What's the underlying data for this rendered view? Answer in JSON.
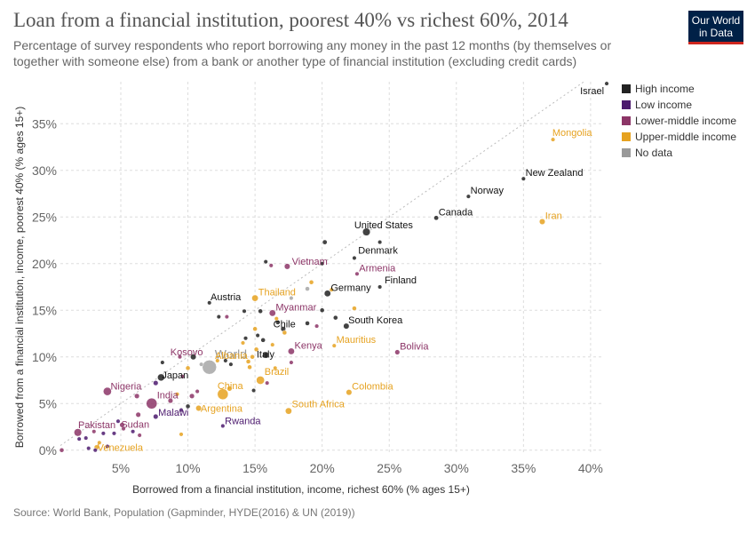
{
  "header": {
    "title": "Loan from a financial institution, poorest 40% vs richest 60%, 2014",
    "subtitle": "Percentage of survey respondents who report borrowing any money in the past 12 months (by themselves or together with someone else) from a bank or another type of financial institution (excluding credit cards)",
    "logo_line1": "Our World",
    "logo_line2": "in Data"
  },
  "footer": {
    "source": "Source: World Bank, Population (Gapminder, HYDE(2016) & UN (2019))"
  },
  "legend": [
    {
      "key": "high",
      "label": "High income",
      "color": "#222222"
    },
    {
      "key": "low",
      "label": "Low income",
      "color": "#4c1a6e"
    },
    {
      "key": "lower_middle",
      "label": "Lower-middle income",
      "color": "#8c3567"
    },
    {
      "key": "upper_middle",
      "label": "Upper-middle income",
      "color": "#e6a220"
    },
    {
      "key": "none",
      "label": "No data",
      "color": "#999999"
    }
  ],
  "chart_data": {
    "type": "scatter",
    "xlabel": "Borrowed from a financial institution, income, richest 60% (% ages 15+)",
    "ylabel": "Borrowed from a financial institution, income, poorest 40% (% ages 15+)",
    "xlim": [
      0.5,
      41
    ],
    "ylim": [
      -0.5,
      39.5
    ],
    "xticks": [
      5,
      10,
      15,
      20,
      25,
      30,
      35,
      40
    ],
    "xtick_labels": [
      "5%",
      "10%",
      "15%",
      "20%",
      "25%",
      "30%",
      "35%",
      "40%"
    ],
    "yticks": [
      0,
      5,
      10,
      15,
      20,
      25,
      30,
      35
    ],
    "ytick_labels": [
      "0%",
      "5%",
      "10%",
      "15%",
      "20%",
      "25%",
      "30%",
      "35%"
    ],
    "grid": true,
    "diagonal_line": true,
    "legend_position": "top-right",
    "points": [
      {
        "label": "Israel",
        "x": 41.2,
        "y": 39.3,
        "group": "high",
        "size": 1
      },
      {
        "label": "Mongolia",
        "x": 37.2,
        "y": 33.3,
        "group": "upper_middle",
        "size": 1
      },
      {
        "label": "New Zealand",
        "x": 35.0,
        "y": 29.1,
        "group": "high",
        "size": 1
      },
      {
        "label": "Norway",
        "x": 30.9,
        "y": 27.2,
        "group": "high",
        "size": 1
      },
      {
        "label": "Canada",
        "x": 28.5,
        "y": 24.9,
        "group": "high",
        "size": 1.3
      },
      {
        "label": "Iran",
        "x": 36.4,
        "y": 24.5,
        "group": "upper_middle",
        "size": 2
      },
      {
        "label": "United States",
        "x": 23.3,
        "y": 23.4,
        "group": "high",
        "size": 3.5
      },
      {
        "label": "Denmark",
        "x": 22.4,
        "y": 20.6,
        "group": "high",
        "size": 1
      },
      {
        "label": "Vietnam",
        "x": 17.4,
        "y": 19.7,
        "group": "lower_middle",
        "size": 2
      },
      {
        "label": "Armenia",
        "x": 22.6,
        "y": 18.9,
        "group": "lower_middle",
        "size": 1
      },
      {
        "label": "Finland",
        "x": 24.3,
        "y": 17.5,
        "group": "high",
        "size": 1
      },
      {
        "label": "Germany",
        "x": 20.4,
        "y": 16.8,
        "group": "high",
        "size": 2.5
      },
      {
        "label": "Thailand",
        "x": 15.0,
        "y": 16.3,
        "group": "upper_middle",
        "size": 2.5
      },
      {
        "label": "Austria",
        "x": 11.6,
        "y": 15.8,
        "group": "high",
        "size": 1
      },
      {
        "label": "Myanmar",
        "x": 16.3,
        "y": 14.7,
        "group": "lower_middle",
        "size": 2.5
      },
      {
        "label": "South Korea",
        "x": 21.8,
        "y": 13.3,
        "group": "high",
        "size": 2
      },
      {
        "label": "Chile",
        "x": 17.1,
        "y": 13.0,
        "group": "high",
        "size": 1.5
      },
      {
        "label": "Mauritius",
        "x": 20.9,
        "y": 11.2,
        "group": "upper_middle",
        "size": 1
      },
      {
        "label": "Kenya",
        "x": 17.7,
        "y": 10.6,
        "group": "lower_middle",
        "size": 2.5
      },
      {
        "label": "Bolivia",
        "x": 25.6,
        "y": 10.5,
        "group": "lower_middle",
        "size": 1.5
      },
      {
        "label": "Kosovo",
        "x": 9.4,
        "y": 10.0,
        "group": "lower_middle",
        "size": 1
      },
      {
        "label": "World",
        "x": 11.6,
        "y": 8.9,
        "group": "none",
        "size": 12
      },
      {
        "label": "Italy",
        "x": 15.8,
        "y": 10.2,
        "group": "high",
        "size": 2.5
      },
      {
        "label": "Albania",
        "x": 12.2,
        "y": 9.6,
        "group": "upper_middle",
        "size": 1
      },
      {
        "label": "Japan",
        "x": 8.0,
        "y": 7.8,
        "group": "high",
        "size": 3
      },
      {
        "label": "Brazil",
        "x": 15.4,
        "y": 7.5,
        "group": "upper_middle",
        "size": 4
      },
      {
        "label": "China",
        "x": 12.6,
        "y": 6.0,
        "group": "upper_middle",
        "size": 7
      },
      {
        "label": "Nigeria",
        "x": 4.0,
        "y": 6.3,
        "group": "lower_middle",
        "size": 4
      },
      {
        "label": "India",
        "x": 7.3,
        "y": 5.0,
        "group": "lower_middle",
        "size": 7
      },
      {
        "label": "Colombia",
        "x": 22.0,
        "y": 6.2,
        "group": "upper_middle",
        "size": 2
      },
      {
        "label": "Argentina",
        "x": 10.8,
        "y": 4.5,
        "group": "upper_middle",
        "size": 2
      },
      {
        "label": "South Africa",
        "x": 17.5,
        "y": 4.2,
        "group": "upper_middle",
        "size": 2.5
      },
      {
        "label": "Malawi",
        "x": 7.6,
        "y": 3.6,
        "group": "low",
        "size": 1.5
      },
      {
        "label": "Sudan",
        "x": 5.1,
        "y": 2.7,
        "group": "lower_middle",
        "size": 1.5
      },
      {
        "label": "Rwanda",
        "x": 12.6,
        "y": 2.6,
        "group": "low",
        "size": 1
      },
      {
        "label": "Pakistan",
        "x": 1.8,
        "y": 1.9,
        "group": "lower_middle",
        "size": 3.5
      },
      {
        "label": "Venezuela",
        "x": 3.2,
        "y": 0.3,
        "group": "upper_middle",
        "size": 1.5
      },
      {
        "label": "",
        "x": 20.2,
        "y": 22.3,
        "group": "high",
        "size": 1.3
      },
      {
        "label": "",
        "x": 24.3,
        "y": 22.3,
        "group": "high",
        "size": 1
      },
      {
        "label": "",
        "x": 15.8,
        "y": 20.2,
        "group": "high",
        "size": 1
      },
      {
        "label": "",
        "x": 16.2,
        "y": 19.8,
        "group": "lower_middle",
        "size": 1
      },
      {
        "label": "",
        "x": 20.0,
        "y": 20.0,
        "group": "high",
        "size": 1
      },
      {
        "label": "",
        "x": 19.2,
        "y": 18.0,
        "group": "upper_middle",
        "size": 1.2
      },
      {
        "label": "",
        "x": 18.9,
        "y": 17.3,
        "group": "none",
        "size": 1.2
      },
      {
        "label": "",
        "x": 20.7,
        "y": 17.2,
        "group": "upper_middle",
        "size": 1
      },
      {
        "label": "",
        "x": 17.7,
        "y": 16.3,
        "group": "none",
        "size": 1
      },
      {
        "label": "",
        "x": 14.2,
        "y": 14.9,
        "group": "high",
        "size": 1
      },
      {
        "label": "",
        "x": 15.4,
        "y": 14.9,
        "group": "high",
        "size": 1.2
      },
      {
        "label": "",
        "x": 20.0,
        "y": 15.0,
        "group": "high",
        "size": 1.2
      },
      {
        "label": "",
        "x": 22.4,
        "y": 15.2,
        "group": "upper_middle",
        "size": 1.2
      },
      {
        "label": "",
        "x": 12.3,
        "y": 14.3,
        "group": "high",
        "size": 1
      },
      {
        "label": "",
        "x": 12.9,
        "y": 14.3,
        "group": "lower_middle",
        "size": 1
      },
      {
        "label": "",
        "x": 16.6,
        "y": 14.1,
        "group": "upper_middle",
        "size": 1
      },
      {
        "label": "",
        "x": 21.0,
        "y": 14.2,
        "group": "high",
        "size": 1.2
      },
      {
        "label": "",
        "x": 18.9,
        "y": 13.6,
        "group": "high",
        "size": 1.2
      },
      {
        "label": "",
        "x": 19.6,
        "y": 13.3,
        "group": "lower_middle",
        "size": 1
      },
      {
        "label": "",
        "x": 16.7,
        "y": 13.7,
        "group": "high",
        "size": 1.2
      },
      {
        "label": "",
        "x": 17.2,
        "y": 12.6,
        "group": "upper_middle",
        "size": 1.2
      },
      {
        "label": "",
        "x": 15.0,
        "y": 13.0,
        "group": "upper_middle",
        "size": 1.2
      },
      {
        "label": "",
        "x": 15.2,
        "y": 12.3,
        "group": "high",
        "size": 1
      },
      {
        "label": "",
        "x": 14.3,
        "y": 12.0,
        "group": "high",
        "size": 1
      },
      {
        "label": "",
        "x": 14.1,
        "y": 11.5,
        "group": "upper_middle",
        "size": 1
      },
      {
        "label": "",
        "x": 15.6,
        "y": 11.8,
        "group": "high",
        "size": 1.2
      },
      {
        "label": "",
        "x": 16.3,
        "y": 11.3,
        "group": "upper_middle",
        "size": 1
      },
      {
        "label": "",
        "x": 15.1,
        "y": 10.8,
        "group": "upper_middle",
        "size": 1.2
      },
      {
        "label": "",
        "x": 14.8,
        "y": 10.0,
        "group": "upper_middle",
        "size": 1.2
      },
      {
        "label": "",
        "x": 14.5,
        "y": 9.5,
        "group": "upper_middle",
        "size": 1.2
      },
      {
        "label": "",
        "x": 17.7,
        "y": 9.4,
        "group": "lower_middle",
        "size": 1
      },
      {
        "label": "",
        "x": 12.8,
        "y": 9.6,
        "group": "high",
        "size": 1
      },
      {
        "label": "",
        "x": 10.4,
        "y": 10.0,
        "group": "high",
        "size": 2
      },
      {
        "label": "",
        "x": 11.0,
        "y": 9.2,
        "group": "none",
        "size": 1
      },
      {
        "label": "",
        "x": 10.0,
        "y": 8.8,
        "group": "upper_middle",
        "size": 1.2
      },
      {
        "label": "",
        "x": 13.2,
        "y": 9.2,
        "group": "high",
        "size": 1
      },
      {
        "label": "",
        "x": 14.6,
        "y": 8.9,
        "group": "upper_middle",
        "size": 1.2
      },
      {
        "label": "",
        "x": 16.5,
        "y": 8.8,
        "group": "upper_middle",
        "size": 1
      },
      {
        "label": "",
        "x": 8.1,
        "y": 9.4,
        "group": "high",
        "size": 1
      },
      {
        "label": "",
        "x": 7.6,
        "y": 7.2,
        "group": "low",
        "size": 1.5
      },
      {
        "label": "",
        "x": 9.6,
        "y": 7.9,
        "group": "lower_middle",
        "size": 1
      },
      {
        "label": "",
        "x": 10.7,
        "y": 6.3,
        "group": "lower_middle",
        "size": 1
      },
      {
        "label": "",
        "x": 10.3,
        "y": 5.8,
        "group": "lower_middle",
        "size": 1.5
      },
      {
        "label": "",
        "x": 9.2,
        "y": 6.0,
        "group": "upper_middle",
        "size": 1
      },
      {
        "label": "",
        "x": 13.1,
        "y": 6.6,
        "group": "upper_middle",
        "size": 1.5
      },
      {
        "label": "",
        "x": 15.9,
        "y": 7.2,
        "group": "lower_middle",
        "size": 1
      },
      {
        "label": "",
        "x": 14.9,
        "y": 6.4,
        "group": "high",
        "size": 1
      },
      {
        "label": "",
        "x": 6.2,
        "y": 5.8,
        "group": "lower_middle",
        "size": 1.5
      },
      {
        "label": "",
        "x": 8.7,
        "y": 5.3,
        "group": "lower_middle",
        "size": 1.5
      },
      {
        "label": "",
        "x": 9.5,
        "y": 4.3,
        "group": "low",
        "size": 1
      },
      {
        "label": "",
        "x": 10.0,
        "y": 4.7,
        "group": "high",
        "size": 1.2
      },
      {
        "label": "",
        "x": 6.3,
        "y": 3.8,
        "group": "lower_middle",
        "size": 1.5
      },
      {
        "label": "",
        "x": 4.8,
        "y": 3.1,
        "group": "low",
        "size": 1
      },
      {
        "label": "",
        "x": 5.2,
        "y": 2.3,
        "group": "lower_middle",
        "size": 1
      },
      {
        "label": "",
        "x": 4.5,
        "y": 1.8,
        "group": "low",
        "size": 1
      },
      {
        "label": "",
        "x": 6.4,
        "y": 1.6,
        "group": "lower_middle",
        "size": 1
      },
      {
        "label": "",
        "x": 5.9,
        "y": 2.0,
        "group": "low",
        "size": 1
      },
      {
        "label": "",
        "x": 3.0,
        "y": 2.0,
        "group": "lower_middle",
        "size": 1
      },
      {
        "label": "",
        "x": 2.4,
        "y": 1.3,
        "group": "low",
        "size": 1
      },
      {
        "label": "",
        "x": 3.7,
        "y": 1.8,
        "group": "low",
        "size": 1
      },
      {
        "label": "",
        "x": 9.5,
        "y": 1.7,
        "group": "upper_middle",
        "size": 1
      },
      {
        "label": "",
        "x": 3.4,
        "y": 0.8,
        "group": "upper_middle",
        "size": 1
      },
      {
        "label": "",
        "x": 4.0,
        "y": 0.4,
        "group": "low",
        "size": 1
      },
      {
        "label": "",
        "x": 2.6,
        "y": 0.2,
        "group": "low",
        "size": 1
      },
      {
        "label": "",
        "x": 0.6,
        "y": 0.0,
        "group": "lower_middle",
        "size": 1.2
      },
      {
        "label": "",
        "x": 3.1,
        "y": 0.0,
        "group": "low",
        "size": 1
      },
      {
        "label": "",
        "x": 1.9,
        "y": 1.2,
        "group": "low",
        "size": 1
      }
    ]
  }
}
